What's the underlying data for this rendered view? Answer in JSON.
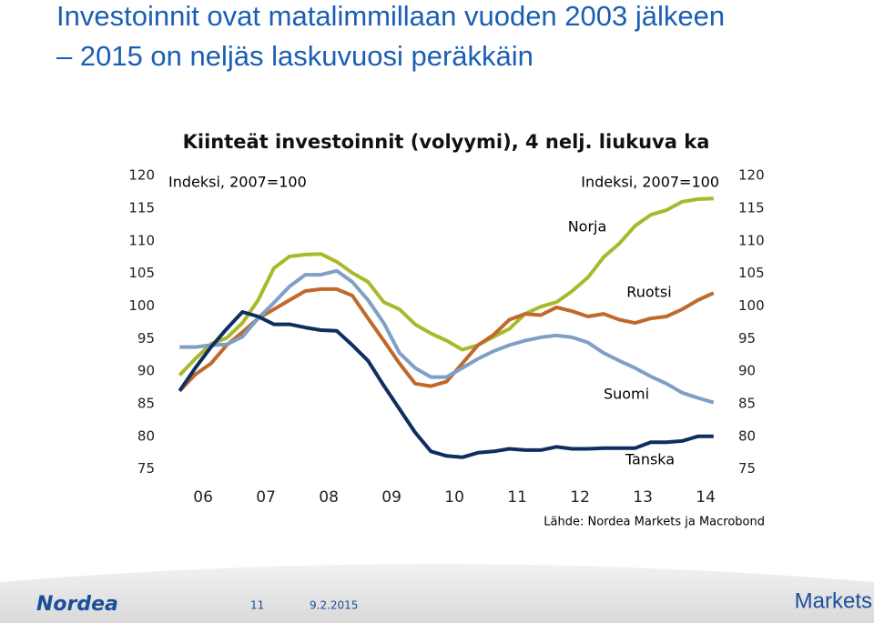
{
  "slide": {
    "title": [
      "Investoinnit ovat matalimmillaan vuoden 2003 jälkeen",
      "– 2015 on neljäs laskuvuosi peräkkäin"
    ],
    "logo": "Nordea",
    "page_number": "11",
    "date": "9.2.2015",
    "brand": "Markets"
  },
  "chart_data": {
    "type": "line",
    "title": "Kiinteät investoinnit (volyymi), 4 nelj. liukuva ka",
    "annotations": [
      "Indeksi, 2007=100",
      "Indeksi, 2007=100"
    ],
    "source": "Lähde: Nordea Markets ja Macrobond",
    "x": [
      2006.125,
      2006.375,
      2006.625,
      2006.875,
      2007.125,
      2007.375,
      2007.625,
      2007.875,
      2008.125,
      2008.375,
      2008.625,
      2008.875,
      2009.125,
      2009.375,
      2009.625,
      2009.875,
      2010.125,
      2010.375,
      2010.625,
      2010.875,
      2011.125,
      2011.375,
      2011.625,
      2011.875,
      2012.125,
      2012.375,
      2012.625,
      2012.875,
      2013.125,
      2013.375,
      2013.625,
      2013.875,
      2014.125,
      2014.375,
      2014.625
    ],
    "series": [
      {
        "name": "Norja",
        "color": "#a9b92b",
        "values": [
          89.4,
          91.9,
          94.2,
          95.1,
          97.4,
          100.9,
          105.8,
          107.6,
          107.9,
          108.0,
          106.8,
          105.1,
          103.7,
          100.6,
          99.5,
          97.2,
          95.8,
          94.7,
          93.3,
          94.0,
          95.3,
          96.5,
          98.8,
          99.9,
          100.6,
          102.3,
          104.4,
          107.5,
          109.6,
          112.3,
          114.0,
          114.7,
          116.0,
          116.4,
          116.5
        ]
      },
      {
        "name": "Ruotsi",
        "color": "#c0692b",
        "values": [
          87.0,
          89.5,
          91.2,
          94.0,
          96.0,
          98.1,
          99.5,
          100.9,
          102.3,
          102.6,
          102.6,
          101.6,
          98.1,
          94.7,
          91.2,
          88.1,
          87.7,
          88.4,
          91.2,
          94.0,
          95.6,
          97.9,
          98.8,
          98.6,
          99.8,
          99.2,
          98.4,
          98.8,
          97.9,
          97.4,
          98.1,
          98.4,
          99.5,
          100.9,
          102.0
        ]
      },
      {
        "name": "Suomi",
        "color": "#7f9fc6",
        "values": [
          93.7,
          93.7,
          94.0,
          94.1,
          95.3,
          98.1,
          100.5,
          103.0,
          104.8,
          104.8,
          105.4,
          103.7,
          100.9,
          97.4,
          92.8,
          90.5,
          89.1,
          89.1,
          90.5,
          91.9,
          93.1,
          94.0,
          94.7,
          95.2,
          95.5,
          95.2,
          94.4,
          92.8,
          91.6,
          90.5,
          89.2,
          88.1,
          86.7,
          85.9,
          85.2
        ]
      },
      {
        "name": "Tanska",
        "color": "#0d2f5f",
        "values": [
          87.0,
          90.5,
          93.7,
          96.5,
          99.1,
          98.4,
          97.2,
          97.2,
          96.7,
          96.3,
          96.2,
          94.0,
          91.6,
          87.8,
          84.2,
          80.6,
          77.7,
          77.0,
          76.8,
          77.5,
          77.7,
          78.1,
          77.9,
          77.9,
          78.4,
          78.1,
          78.1,
          78.2,
          78.2,
          78.2,
          79.1,
          79.1,
          79.3,
          80.0,
          80.0
        ]
      }
    ],
    "xlim": [
      2005.875,
      2014.875
    ],
    "xticks": [
      {
        "value": 2006.5,
        "label": "06"
      },
      {
        "value": 2007.5,
        "label": "07"
      },
      {
        "value": 2008.5,
        "label": "08"
      },
      {
        "value": 2009.5,
        "label": "09"
      },
      {
        "value": 2010.5,
        "label": "10"
      },
      {
        "value": 2011.5,
        "label": "11"
      },
      {
        "value": 2012.5,
        "label": "12"
      },
      {
        "value": 2013.5,
        "label": "13"
      },
      {
        "value": 2014.5,
        "label": "14"
      }
    ],
    "ylim": [
      73,
      121
    ],
    "yticks": [
      75,
      80,
      85,
      90,
      95,
      100,
      105,
      110,
      115,
      120
    ],
    "y2lim": [
      73,
      121
    ],
    "y2ticks": [
      75,
      80,
      85,
      90,
      95,
      100,
      105,
      110,
      115,
      120
    ],
    "grid": false
  }
}
